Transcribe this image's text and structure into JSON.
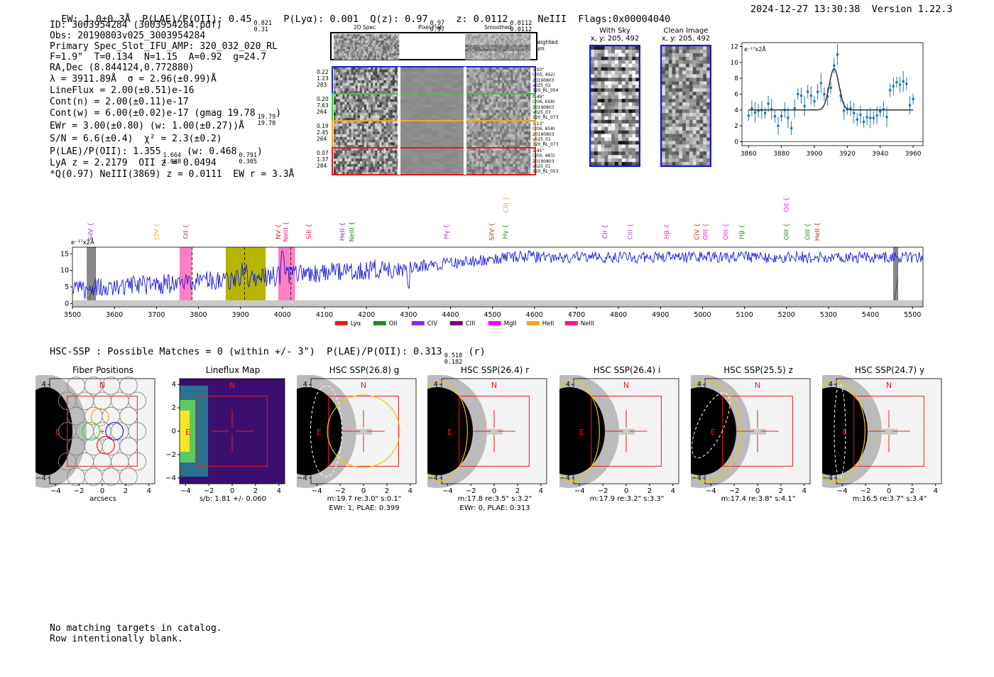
{
  "header": {
    "ew": "EW: 1.0±0.3Å",
    "plae_label": "P(LAE)/P(OII): 0.45",
    "plae_hi": "0.821",
    "plae_lo": "0.31",
    "plya": "P(Lyα): 0.001",
    "qz_label": "Q(z): 0.97",
    "qz_hi": "0.97",
    "qz_lo": "0.97",
    "z_label": "z: 0.0112",
    "z_hi": "0.0112",
    "z_lo": "0.0112",
    "line": "NeIII",
    "flags": "Flags:0x00004040",
    "datetime": "2024-12-27 13:30:38",
    "version": "Version 1.22.3"
  },
  "info": {
    "id": "ID: 3003954284 (3003954284.pdf)",
    "obs": "Obs: 20190803v025_3003954284",
    "primary": "Primary Spec_Slot_IFU_AMP: 320_032_020_RL",
    "fibers": "F=1.9\"  T=0.134  N=1.15  A=0.92  g=24.7",
    "radec": "RA,Dec (8.844124,0.772880)",
    "lambda": "λ = 3911.89Å  σ = 2.96(±0.99)Å",
    "lineflux": "LineFlux = 2.00(±0.51)e-16",
    "contn": "Cont(n) = 2.00(±0.11)e-17",
    "contw": "Cont(w) = 6.00(±0.02)e-17 (gmag 19.78",
    "contw_hi": "19.79",
    "contw_lo": "19.78",
    "contw_end": ")",
    "ewr": "EWr = 3.00(±0.80) (w: 1.00(±0.27))Å",
    "sn": "S/N = 6.6(±0.4)  χ² = 2.3(±0.2)",
    "plae2": "P(LAE)/P(OII): 1.355",
    "plae2_hi": "1.664",
    "plae2_lo": "1.088",
    "plae2_w": "(w: 0.468",
    "plae2_w_hi": "0.791",
    "plae2_w_lo": "0.305",
    "plae2_end": ")",
    "lya": "LyA z = 2.2179  OII z = 0.0494",
    "q": "*Q(0.97) NeIII(3869) z = 0.0111  EW r = 3.3Å"
  },
  "cutouts": {
    "col_titles": [
      "2D Spec",
      "Pixel Flat",
      "Smoothed"
    ],
    "weighted": "Weighted Sum",
    "rows": [
      {
        "left": [
          "0.22",
          "1.23",
          "283"
        ],
        "right": [
          "1.03\"",
          "(205, 492)",
          "20190803",
          "v025_02",
          "320_RL_054"
        ],
        "color": "#1f1fd6"
      },
      {
        "left": [
          "0.20",
          "7.63",
          "264"
        ],
        "right": [
          "0.49\"",
          "(206, 658)",
          "20190803",
          "v025_03",
          "320_RL_073"
        ],
        "color": "#2bd12b"
      },
      {
        "left": [
          "0.19",
          "2.45",
          "264"
        ],
        "right": [
          "1.13\"",
          "(206, 658)",
          "20190803",
          "v025_01",
          "320_RL_073"
        ],
        "color": "#f5a623"
      },
      {
        "left": [
          "0.07",
          "1.37",
          "284"
        ],
        "right": [
          "1.45\"",
          "(205, 483)",
          "20190803",
          "v025_01",
          "320_RL_053"
        ],
        "color": "#e81c1c"
      }
    ],
    "with_sky_title": "With Sky",
    "with_sky_xy": "x, y: 205, 492",
    "clean_title": "Clean Image",
    "clean_xy": "x, y: 205, 492"
  },
  "fit_chart": {
    "type": "scatter",
    "ylabel": "e⁻¹⁷x2Å",
    "xlim": [
      3856,
      3966
    ],
    "ylim": [
      -0.5,
      12.5
    ],
    "xticks": [
      3860,
      3880,
      3900,
      3920,
      3940,
      3960
    ],
    "yticks": [
      0,
      2,
      4,
      6,
      8,
      10,
      12
    ],
    "x": [
      3860,
      3862,
      3864,
      3866,
      3868,
      3870,
      3872,
      3874,
      3876,
      3878,
      3880,
      3882,
      3884,
      3886,
      3888,
      3890,
      3892,
      3894,
      3896,
      3898,
      3900,
      3902,
      3904,
      3906,
      3908,
      3910,
      3912,
      3914,
      3916,
      3918,
      3920,
      3922,
      3924,
      3926,
      3928,
      3930,
      3932,
      3934,
      3936,
      3938,
      3940,
      3942,
      3944,
      3946,
      3948,
      3950,
      3952,
      3954,
      3956,
      3958,
      3960
    ],
    "y": [
      3.3,
      4.2,
      3.7,
      3.9,
      4.0,
      3.6,
      4.8,
      4.1,
      3.2,
      2.0,
      3.2,
      4.0,
      3.0,
      1.7,
      4.2,
      6.0,
      5.8,
      4.5,
      6.3,
      5.8,
      5.1,
      6.3,
      7.4,
      6.0,
      5.7,
      6.8,
      9.6,
      11.0,
      5.8,
      3.9,
      4.1,
      4.2,
      3.6,
      2.8,
      3.4,
      2.5,
      3.1,
      3.0,
      3.0,
      3.3,
      3.8,
      4.1,
      3.1,
      6.5,
      7.0,
      7.5,
      7.2,
      7.6,
      7.3,
      4.6,
      5.4
    ],
    "model_baseline": 4.0,
    "model_peak": 9.2,
    "model_center": 3912,
    "model_sigma": 2.96
  },
  "spectrum": {
    "ylabel": "e⁻¹⁷x2Å",
    "xlim": [
      3500,
      5525
    ],
    "ylim": [
      -1,
      17
    ],
    "xticks": [
      3500,
      3600,
      3700,
      3800,
      3900,
      4000,
      4100,
      4200,
      4300,
      4400,
      4500,
      4600,
      4700,
      4800,
      4900,
      5000,
      5100,
      5200,
      5300,
      5400,
      5500
    ],
    "yticks": [
      0,
      5,
      10,
      15
    ],
    "line_labels": [
      {
        "name": "SiIV",
        "wave": 3543,
        "color": "#8a2be2",
        "level": 0
      },
      {
        "name": "CIV",
        "wave": 3700,
        "color": "#f5a623",
        "level": 0
      },
      {
        "name": "OII",
        "wave": 3770,
        "color": "#e91e63",
        "level": 0
      },
      {
        "name": "NV",
        "wave": 3990,
        "color": "#e81c1c",
        "level": 0
      },
      {
        "name": "NeIII",
        "wave": 4008,
        "color": "#e91e8c",
        "level": 0
      },
      {
        "name": "SiII",
        "wave": 4063,
        "color": "#e81c1c",
        "level": 0
      },
      {
        "name": "HeII",
        "wave": 4142,
        "color": "#8a2be2",
        "level": 0
      },
      {
        "name": "NeIII",
        "wave": 4165,
        "color": "#228b22",
        "level": 0
      },
      {
        "name": "Hγ",
        "wave": 4390,
        "color": "#e91ecc",
        "level": 0
      },
      {
        "name": "SiIV",
        "wave": 4498,
        "color": "#e81c1c",
        "level": 0
      },
      {
        "name": "CIII",
        "wave": 4532,
        "color": "#f5a623",
        "level": 1
      },
      {
        "name": "Hγ",
        "wave": 4530,
        "color": "#228b22",
        "level": 0
      },
      {
        "name": "CII",
        "wave": 4768,
        "color": "#8a2be2",
        "level": 0
      },
      {
        "name": "CIII",
        "wave": 4828,
        "color": "#b94fe0",
        "level": 0
      },
      {
        "name": "Hβ",
        "wave": 4915,
        "color": "#e91ecc",
        "level": 0
      },
      {
        "name": "CIV",
        "wave": 4987,
        "color": "#e81c1c",
        "level": 0
      },
      {
        "name": "OIII",
        "wave": 5007,
        "color": "#e91ecc",
        "level": 0
      },
      {
        "name": "OIII",
        "wave": 5055,
        "color": "#e91ecc",
        "level": 0
      },
      {
        "name": "Hβ",
        "wave": 5093,
        "color": "#228b22",
        "level": 0
      },
      {
        "name": "OII",
        "wave": 5200,
        "color": "#e91ecc",
        "level": 1
      },
      {
        "name": "OIII",
        "wave": 5200,
        "color": "#228b22",
        "level": 0
      },
      {
        "name": "OIII",
        "wave": 5250,
        "color": "#228b22",
        "level": 0
      },
      {
        "name": "HeII",
        "wave": 5273,
        "color": "#e81c1c",
        "level": 0
      }
    ],
    "legend": [
      {
        "name": "Lyα",
        "color": "#e81c1c"
      },
      {
        "name": "OII",
        "color": "#228b22"
      },
      {
        "name": "CIV",
        "color": "#8a2be2"
      },
      {
        "name": "CIII",
        "color": "#800080"
      },
      {
        "name": "MgII",
        "color": "#ff00ff"
      },
      {
        "name": "HeII",
        "color": "#f5a623"
      },
      {
        "name": "NeIII",
        "color": "#e91e8c"
      }
    ],
    "bands": [
      {
        "from": 3755,
        "to": 3785,
        "color": "#ff7fc3"
      },
      {
        "from": 3865,
        "to": 3960,
        "color": "#b5b500"
      },
      {
        "from": 3990,
        "to": 4030,
        "color": "#ff7fc3"
      }
    ],
    "masked": [
      {
        "from": 3535,
        "to": 3555
      },
      {
        "from": 5455,
        "to": 5465
      }
    ],
    "dashed": [
      3785,
      3910,
      4020
    ],
    "seed": 7
  },
  "hsc": {
    "title": "HSC-SSP : Possible Matches = 0 (within +/- 3\")  P(LAE)/P(OII): 0.313",
    "plae_hi": "0.518",
    "plae_lo": "0.182",
    "plae_band": "(r)",
    "panels": [
      {
        "title": "Fiber Positions",
        "caption": "arcsecs",
        "caption2": "",
        "kind": "fiber"
      },
      {
        "title": "Lineflux Map",
        "caption": "s/b: 1.81 +/- 0.060",
        "caption2": "",
        "kind": "flux"
      },
      {
        "title": "HSC SSP(26.8) g",
        "caption": "m:19.7 re:3.0\"  s:0.1\"",
        "caption2": "EWr: 1, PLAE: 0.399",
        "kind": "g"
      },
      {
        "title": "HSC SSP(26.4) r",
        "caption": "m:17.8  re:3.5\"  s:3.2\"",
        "caption2": "EWr: 0, PLAE: 0.313",
        "kind": "r"
      },
      {
        "title": "HSC SSP(26.4) i",
        "caption": "m:17.9  re:3.2\"  s:3.3\"",
        "caption2": "",
        "kind": "i"
      },
      {
        "title": "HSC SSP(25.5) z",
        "caption": "m:17.4  re:3.8\"  s:4.1\"",
        "caption2": "",
        "kind": "z"
      },
      {
        "title": "HSC SSP(24.7) y",
        "caption": "m:16.5  re:3.7\"  s:3.4\"",
        "caption2": "",
        "kind": "y"
      }
    ],
    "ticks": [
      "−4",
      "−2",
      "0",
      "2",
      "4"
    ],
    "north": "N",
    "east": "E"
  },
  "footer": {
    "line1": "No matching targets in catalog.",
    "line2": "Row intentionally blank."
  }
}
